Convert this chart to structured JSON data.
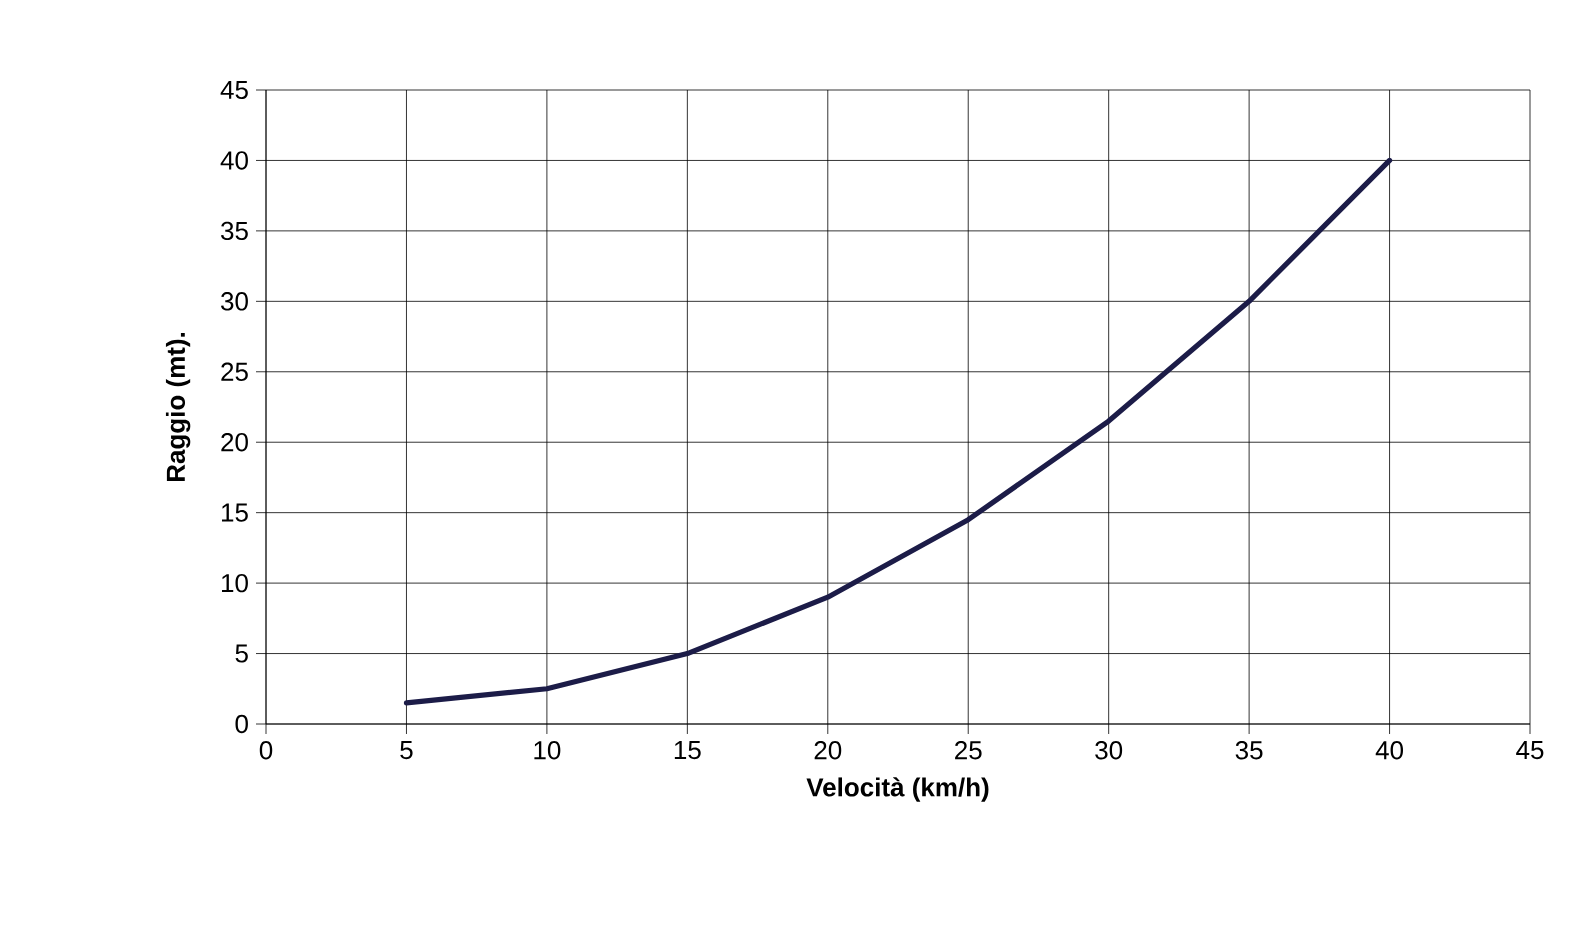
{
  "chart_data": {
    "type": "line",
    "xlabel": "Velocità (km/h)",
    "ylabel": "Raggio (mt).",
    "x": [
      5,
      10,
      15,
      20,
      25,
      30,
      35,
      40
    ],
    "series": [
      {
        "color": "#1c1c48",
        "values": [
          1.5,
          2.5,
          5,
          9,
          14.5,
          21.5,
          30,
          40
        ]
      }
    ],
    "xlim": [
      0,
      45
    ],
    "ylim": [
      0,
      45
    ],
    "xticks": [
      0,
      5,
      10,
      15,
      20,
      25,
      30,
      35,
      40,
      45
    ],
    "yticks": [
      0,
      5,
      10,
      15,
      20,
      25,
      30,
      35,
      40,
      45
    ],
    "grid": true,
    "line_style": "solid",
    "marker": "none"
  }
}
